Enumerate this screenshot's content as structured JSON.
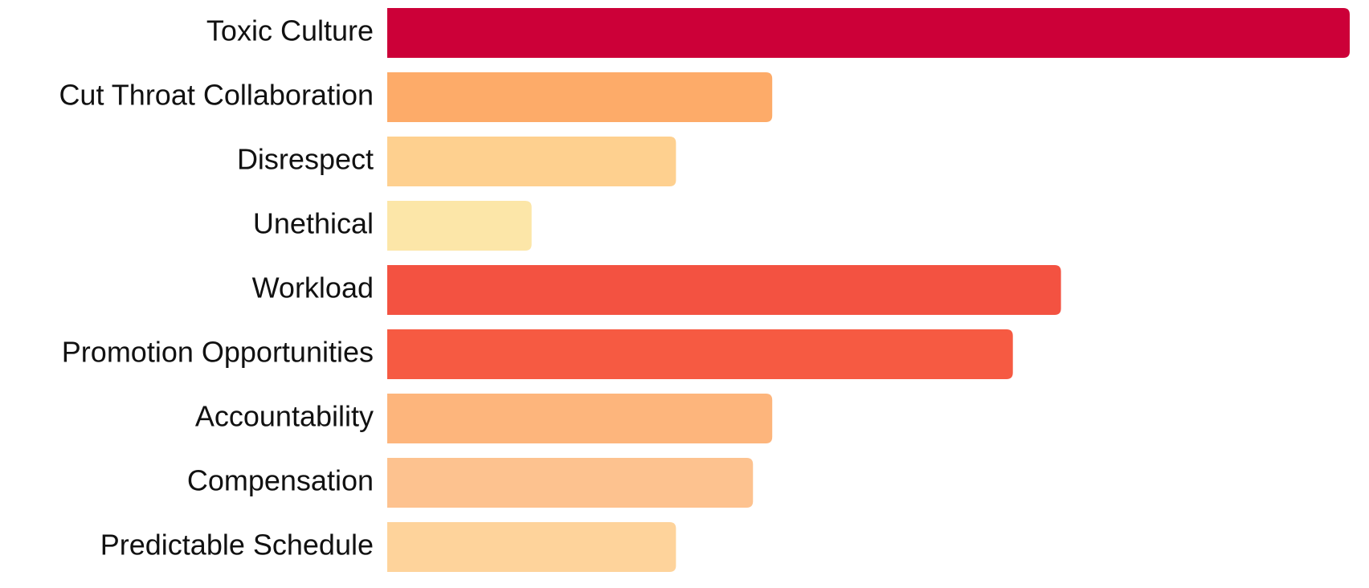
{
  "chart_data": {
    "type": "barh",
    "categories": [
      "Toxic Culture",
      "Cut Throat Collaboration",
      "Disrespect",
      "Unethical",
      "Workload",
      "Promotion Opportunities",
      "Accountability",
      "Compensation",
      "Predictable Schedule"
    ],
    "values": [
      10,
      4.0,
      3.0,
      1.5,
      7.0,
      6.5,
      4.0,
      3.8,
      3.0
    ],
    "colors": [
      "#cc0038",
      "#fdab69",
      "#fed08f",
      "#fce6a8",
      "#f35241",
      "#f65a42",
      "#fdb57c",
      "#fdc28f",
      "#fed39b"
    ],
    "xlim": [
      0,
      10
    ]
  }
}
